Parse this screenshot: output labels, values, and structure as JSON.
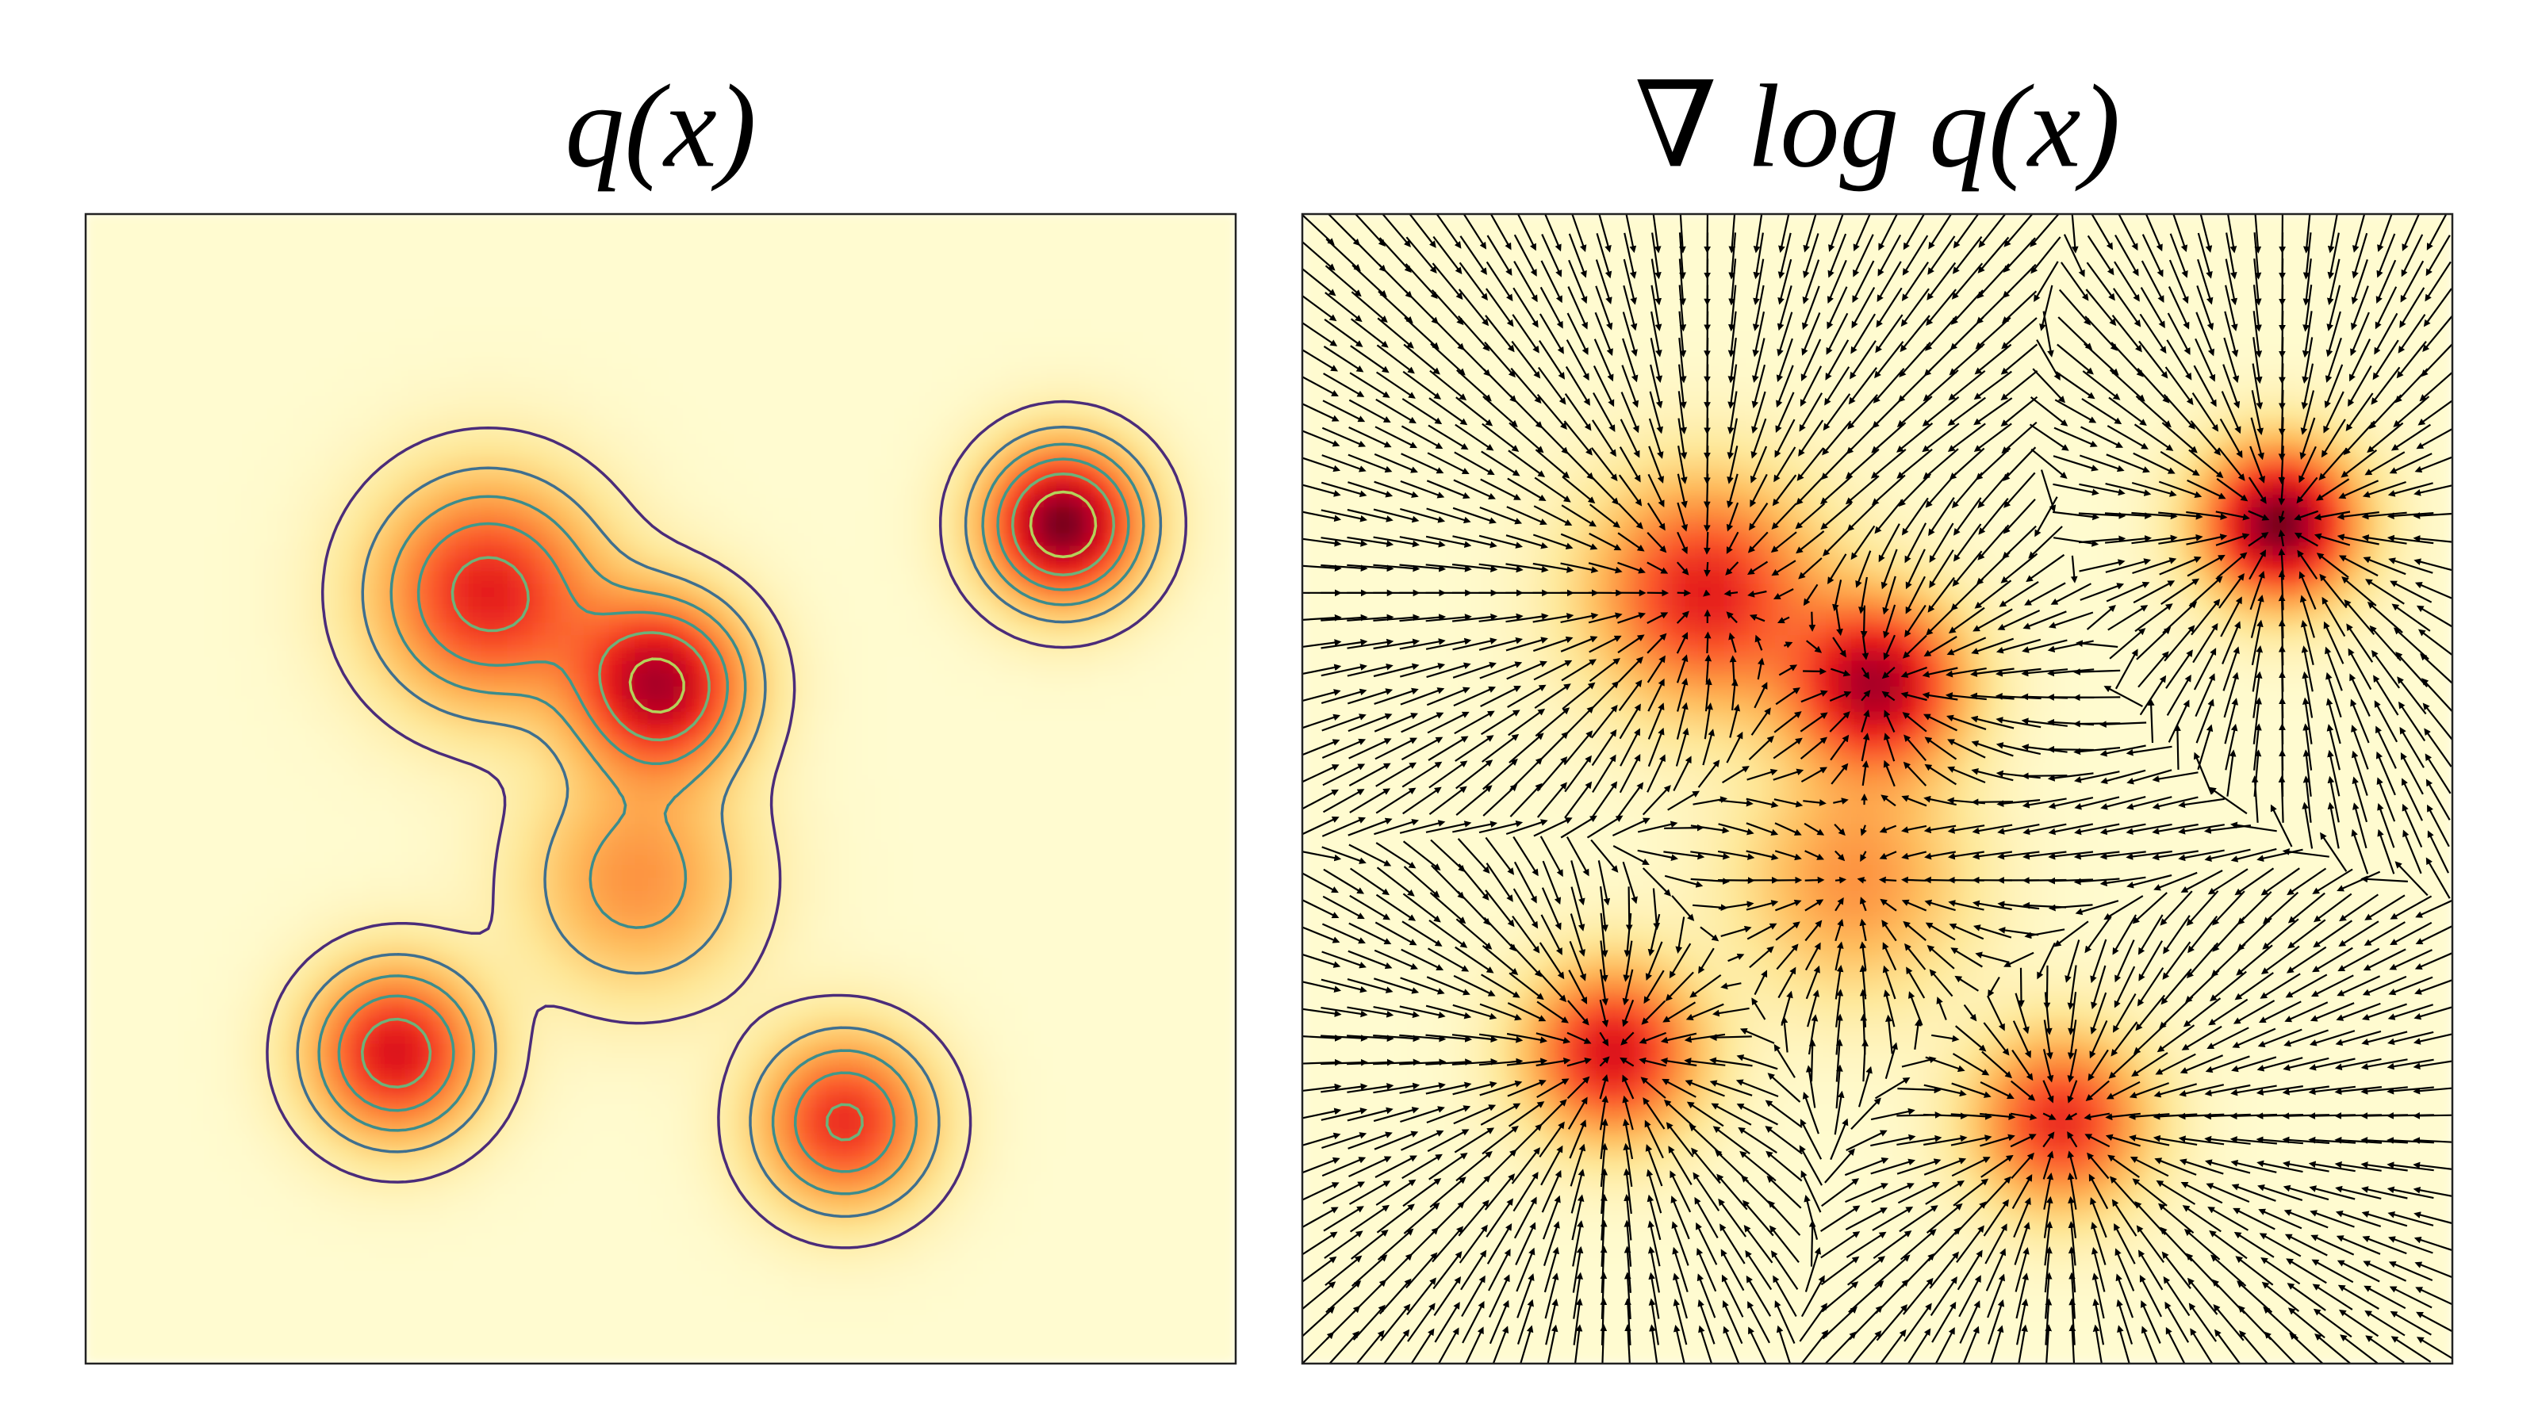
{
  "chart_data": [
    {
      "type": "heatmap",
      "title": "q(x)"
    },
    {
      "type": "quiver",
      "title": "∇ log q(x)"
    }
  ]
}
